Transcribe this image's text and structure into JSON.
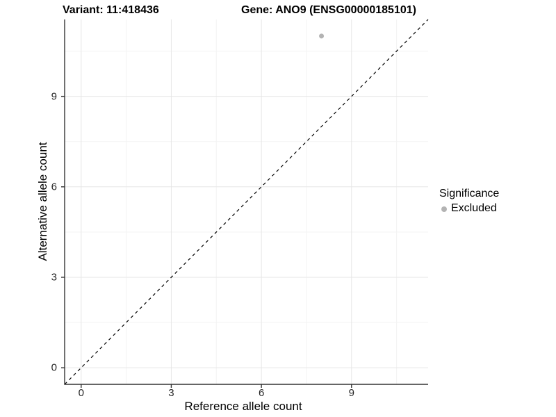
{
  "chart_data": {
    "type": "scatter",
    "title_left": "Variant: 11:418436",
    "title_right": "Gene: ANO9 (ENSG00000185101)",
    "xlabel": "Reference allele count",
    "ylabel": "Alternative allele count",
    "xlim": [
      -0.55,
      11.55
    ],
    "ylim": [
      -0.55,
      11.55
    ],
    "x_ticks": [
      0,
      3,
      6,
      9
    ],
    "y_ticks": [
      0,
      3,
      6,
      9
    ],
    "x_minor_ticks": [
      1.5,
      4.5,
      7.5,
      10.5
    ],
    "y_minor_ticks": [
      1.5,
      4.5,
      7.5,
      10.5
    ],
    "grid": "major+minor",
    "legend_position": "right",
    "reference_line": {
      "kind": "y=x identity",
      "style": "dashed",
      "color": "#000000"
    },
    "series": [
      {
        "name": "Excluded",
        "color": "#b3b3b3",
        "points": [
          [
            8,
            11
          ]
        ]
      }
    ],
    "legend": {
      "title": "Significance",
      "entries": [
        {
          "label": "Excluded",
          "color": "#b3b3b3"
        }
      ]
    }
  },
  "colors": {
    "grid_major": "#e6e6e6",
    "grid_minor": "#f3f3f3",
    "axis_line": "#333333",
    "tick_text": "#262626"
  }
}
